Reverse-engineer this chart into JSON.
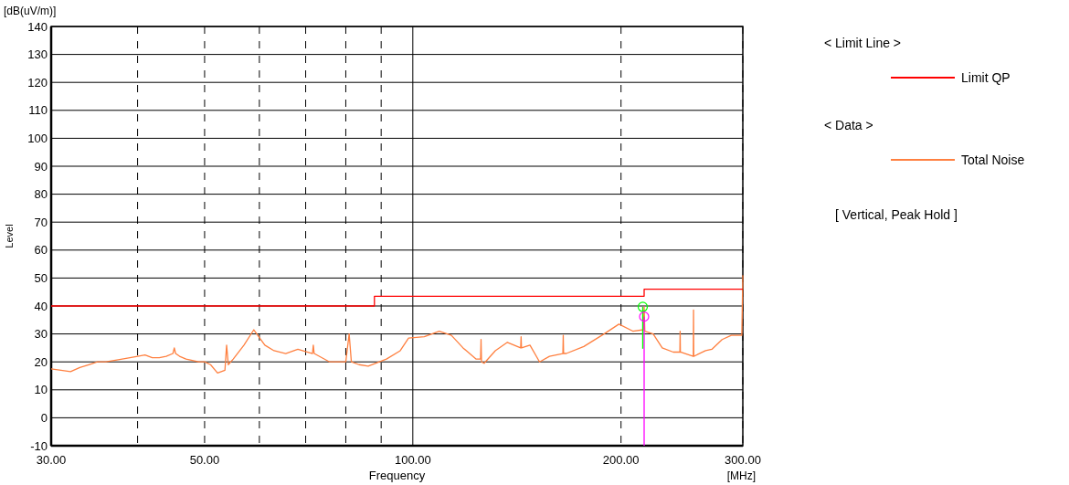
{
  "chart_data": {
    "type": "line",
    "xlabel": "Frequency",
    "ylabel": "Level",
    "log": "x",
    "grid": true,
    "legend": "right",
    "xlim": [
      30,
      300
    ],
    "ylim": [
      -10,
      140
    ],
    "xticks": [
      {
        "value": 30,
        "label": "30.00"
      },
      {
        "value": 40,
        "label": null
      },
      {
        "value": 50,
        "label": "50.00"
      },
      {
        "value": 60,
        "label": null
      },
      {
        "value": 70,
        "label": null
      },
      {
        "value": 80,
        "label": null
      },
      {
        "value": 90,
        "label": null
      },
      {
        "value": 100,
        "label": "100.00"
      },
      {
        "value": 200,
        "label": "200.00"
      },
      {
        "value": 300,
        "label": "300.00"
      }
    ],
    "yticks": [
      -10,
      0,
      10,
      20,
      30,
      40,
      50,
      60,
      70,
      80,
      90,
      100,
      110,
      120,
      130,
      140
    ],
    "annotations": [
      "[dB(uV/m)]",
      "[MHz]",
      "< Limit Line >",
      "< Data >",
      "[ Vertical, Peak Hold ]"
    ],
    "series": [
      {
        "name": "Total Noise",
        "color": "#ff8040",
        "x": [
          30,
          31,
          32,
          33,
          34,
          35,
          36,
          37,
          38,
          39,
          40,
          41,
          42,
          43,
          44,
          45,
          45.2,
          45.4,
          46,
          47,
          48,
          49,
          50,
          51,
          52.2,
          53.5,
          53.8,
          54.1,
          55,
          57,
          58.9,
          61.1,
          63,
          65.5,
          68.2,
          71.6,
          71.8,
          72,
          75.8,
          80,
          80.9,
          81.5,
          83.6,
          86.2,
          91.6,
          95.9,
          98.6,
          103.9,
          109.2,
          113.7,
          118.2,
          123.5,
          125.3,
          125.5,
          125.7,
          126.8,
          131.6,
          137,
          143.2,
          143.4,
          143.6,
          147.7,
          152.5,
          157.6,
          164.8,
          165,
          165.2,
          166.7,
          176.7,
          189,
          198.6,
          208,
          215.5,
          216,
          216.5,
          222.6,
          229.4,
          238,
          243.3,
          243.5,
          243.7,
          254.4,
          254.6,
          254.8,
          265,
          270.6,
          280,
          288.7,
          299,
          300
        ],
        "values": [
          17.5,
          17,
          16.5,
          18,
          19,
          20,
          20,
          20.5,
          21,
          21.5,
          22,
          22.5,
          21.5,
          21.5,
          22,
          23,
          25,
          23,
          22,
          21,
          20.5,
          20,
          20,
          19,
          16,
          17,
          26,
          19,
          21,
          26,
          31.5,
          26,
          24,
          23,
          24.5,
          23,
          26,
          23,
          20,
          20,
          30,
          20,
          19,
          18.5,
          21,
          24,
          28.5,
          29,
          31,
          29.5,
          25,
          21,
          21,
          28,
          20,
          19.5,
          24,
          27,
          25,
          29,
          25,
          26,
          20,
          22,
          23,
          29.5,
          23,
          23,
          25.5,
          30,
          33.5,
          31,
          31.5,
          39.7,
          31,
          30,
          25,
          23.5,
          23.5,
          31,
          23.5,
          22,
          38.6,
          22,
          24,
          24.5,
          28,
          29.5,
          29.5,
          51
        ]
      },
      {
        "name": "Limit QP",
        "type": "step",
        "color": "#ff0000",
        "x": [
          30,
          88,
          216,
          300
        ],
        "values": [
          40,
          43.5,
          46,
          46
        ]
      },
      {
        "type": "line",
        "color": "#ff00ff",
        "x": [
          216,
          216
        ],
        "values": [
          36.2,
          -10
        ]
      },
      {
        "type": "line",
        "color": "#00ff00",
        "x": [
          215,
          215
        ],
        "values": [
          39.7,
          24.7
        ]
      },
      {
        "type": "scatter",
        "marker": "circle",
        "color": "#00ff00",
        "x": [
          215
        ],
        "values": [
          39.7
        ]
      },
      {
        "type": "scatter",
        "marker": "circle",
        "color": "#ff00ff",
        "x": [
          216
        ],
        "values": [
          36.2
        ]
      }
    ]
  }
}
